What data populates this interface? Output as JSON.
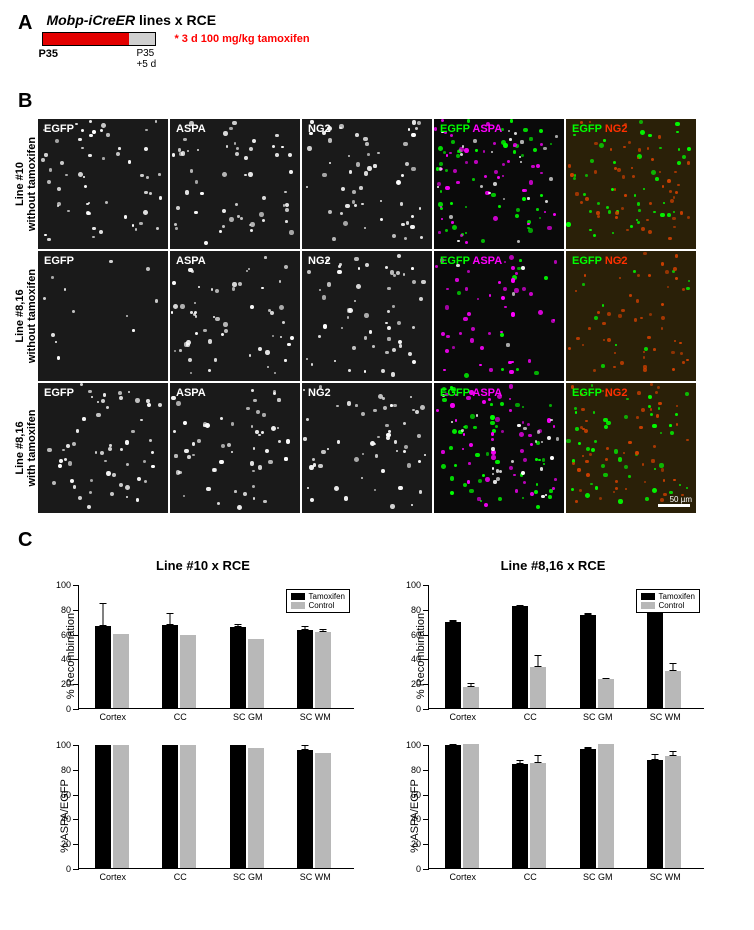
{
  "panelA": {
    "label": "A",
    "title_italic": "Mobp-iCreER",
    "title_rest": " lines x RCE",
    "tamoxifen_note": "* 3 d 100 mg/kg tamoxifen",
    "t_start": "P35",
    "t_end_line1": "P35",
    "t_end_line2": "+5 d",
    "bar_red_color": "#e30000",
    "bar_gray_color": "#d0d0d0"
  },
  "panelB": {
    "label": "B",
    "scale_text": "50 µm",
    "rows": [
      {
        "label_line1": "Line #10",
        "label_line2": "without tamoxifen",
        "density": "high"
      },
      {
        "label_line1": "Line #8,16",
        "label_line2": "without tamoxifen",
        "density": "low"
      },
      {
        "label_line1": "Line #8,16",
        "label_line2": "with tamoxifen",
        "density": "high"
      }
    ],
    "columns": [
      {
        "labels": [
          {
            "text": "EGFP",
            "color": "#ffffff"
          }
        ],
        "bg": "#1a1a1a",
        "kind": "mono"
      },
      {
        "labels": [
          {
            "text": "ASPA",
            "color": "#ffffff"
          }
        ],
        "bg": "#1a1a1a",
        "kind": "mono"
      },
      {
        "labels": [
          {
            "text": "NG2",
            "color": "#ffffff"
          }
        ],
        "bg": "#1a1a1a",
        "kind": "mono"
      },
      {
        "labels": [
          {
            "text": "EGFP",
            "color": "#00ff00"
          },
          {
            "text": "ASPA",
            "color": "#ff00ff"
          }
        ],
        "bg": "#0a0a0a",
        "kind": "merge-gm"
      },
      {
        "labels": [
          {
            "text": "EGFP",
            "color": "#00ff00"
          },
          {
            "text": "NG2",
            "color": "#ff3000"
          }
        ],
        "bg": "#2a2008",
        "kind": "merge-gr"
      }
    ]
  },
  "panelC": {
    "label": "C",
    "ylim": [
      0,
      100
    ],
    "ytick_step": 20,
    "categories": [
      "Cortex",
      "CC",
      "SC GM",
      "SC WM"
    ],
    "legend": {
      "tamoxifen": "Tamoxifen",
      "control": "Control"
    },
    "colors": {
      "tamoxifen": "#000000",
      "control": "#b8b8b8"
    },
    "columns": [
      {
        "title": "Line #10 x RCE",
        "charts": [
          {
            "ylabel": "% Recombination",
            "groups": [
              {
                "tam": 66,
                "tam_err": 19,
                "ctrl": 60,
                "ctrl_err": 0
              },
              {
                "tam": 67,
                "tam_err": 10,
                "ctrl": 59,
                "ctrl_err": 0
              },
              {
                "tam": 65,
                "tam_err": 3,
                "ctrl": 56,
                "ctrl_err": 0
              },
              {
                "tam": 63,
                "tam_err": 3,
                "ctrl": 61,
                "ctrl_err": 3
              }
            ]
          },
          {
            "ylabel": "% ASPA/EGFP",
            "groups": [
              {
                "tam": 99,
                "tam_err": 0,
                "ctrl": 99,
                "ctrl_err": 0
              },
              {
                "tam": 99,
                "tam_err": 0,
                "ctrl": 99,
                "ctrl_err": 0
              },
              {
                "tam": 99,
                "tam_err": 0,
                "ctrl": 97,
                "ctrl_err": 0
              },
              {
                "tam": 95,
                "tam_err": 4,
                "ctrl": 93,
                "ctrl_err": 0
              }
            ]
          }
        ]
      },
      {
        "title": "Line #8,16 x RCE",
        "charts": [
          {
            "ylabel": "% Recombination",
            "groups": [
              {
                "tam": 69,
                "tam_err": 2,
                "ctrl": 17,
                "ctrl_err": 3
              },
              {
                "tam": 82,
                "tam_err": 1,
                "ctrl": 33,
                "ctrl_err": 10
              },
              {
                "tam": 75,
                "tam_err": 2,
                "ctrl": 23,
                "ctrl_err": 1
              },
              {
                "tam": 79,
                "tam_err": 2,
                "ctrl": 30,
                "ctrl_err": 6
              }
            ]
          },
          {
            "ylabel": "% ASPA/EGFP",
            "groups": [
              {
                "tam": 99,
                "tam_err": 1,
                "ctrl": 100,
                "ctrl_err": 0
              },
              {
                "tam": 84,
                "tam_err": 3,
                "ctrl": 85,
                "ctrl_err": 6
              },
              {
                "tam": 96,
                "tam_err": 2,
                "ctrl": 100,
                "ctrl_err": 0
              },
              {
                "tam": 87,
                "tam_err": 5,
                "ctrl": 90,
                "ctrl_err": 4
              }
            ]
          }
        ]
      }
    ]
  }
}
